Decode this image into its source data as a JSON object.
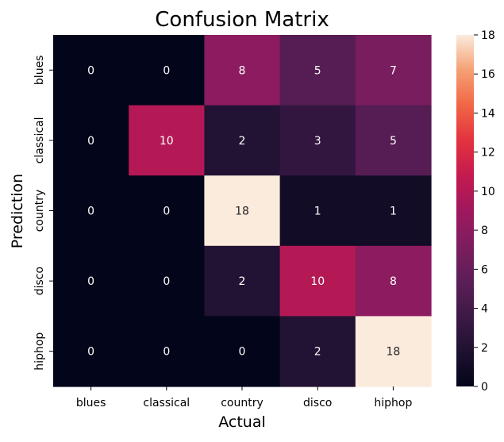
{
  "chart_data": {
    "type": "heatmap",
    "title": "Confusion Matrix",
    "xlabel": "Actual",
    "ylabel": "Prediction",
    "x_categories": [
      "blues",
      "classical",
      "country",
      "disco",
      "hiphop"
    ],
    "y_categories": [
      "blues",
      "classical",
      "country",
      "disco",
      "hiphop"
    ],
    "values": [
      [
        0,
        0,
        8,
        5,
        7
      ],
      [
        0,
        10,
        2,
        3,
        5
      ],
      [
        0,
        0,
        18,
        1,
        1
      ],
      [
        0,
        0,
        2,
        10,
        8
      ],
      [
        0,
        0,
        0,
        2,
        18
      ]
    ],
    "vmin": 0,
    "vmax": 18,
    "colormap": "rocket",
    "annotations": true,
    "colorbar": {
      "ticks": [
        0,
        2,
        4,
        6,
        8,
        10,
        12,
        14,
        16,
        18
      ]
    }
  }
}
